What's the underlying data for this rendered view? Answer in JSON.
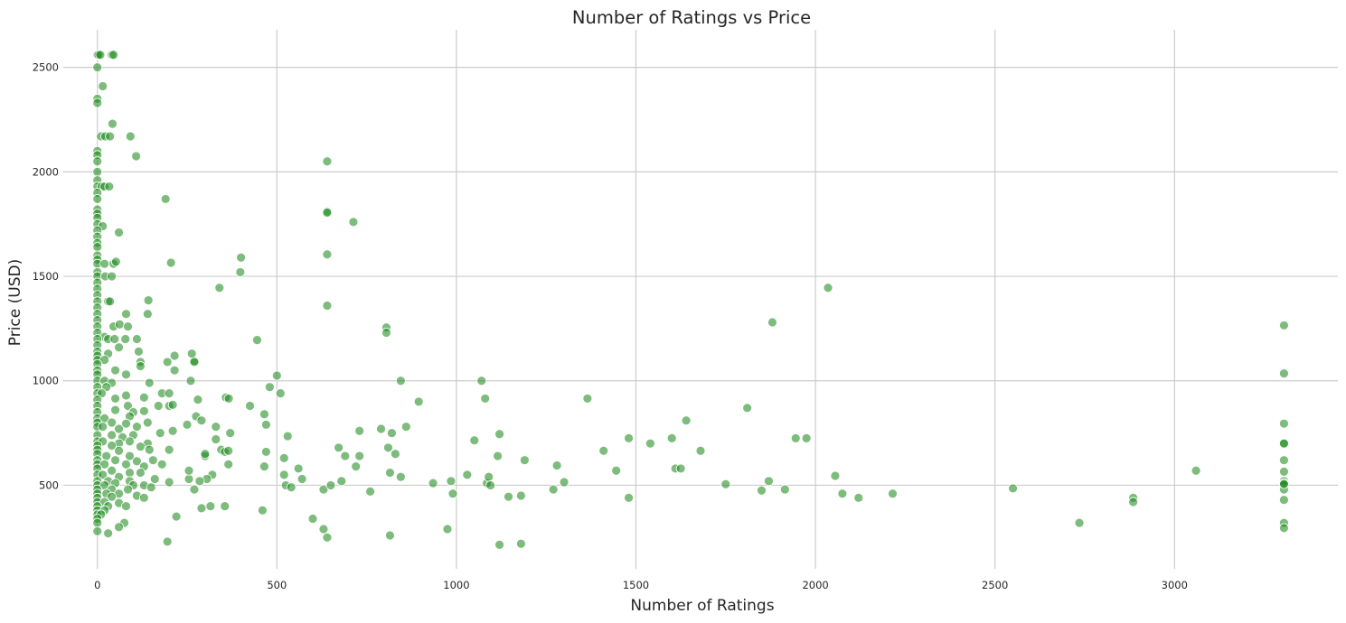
{
  "chart_data": {
    "type": "scatter",
    "title": "Number of Ratings vs Price",
    "xlabel": "Number of Ratings",
    "ylabel": "Price (USD)",
    "xlim": [
      -95,
      3455
    ],
    "ylim": [
      100,
      2680
    ],
    "xticks": [
      0,
      500,
      1000,
      1500,
      2000,
      2500,
      3000
    ],
    "yticks": [
      500,
      1000,
      1500,
      2000,
      2500
    ],
    "grid": true,
    "color": "#1f8b1f",
    "points": [
      [
        0,
        2560
      ],
      [
        3,
        2560
      ],
      [
        8,
        2560
      ],
      [
        40,
        2560
      ],
      [
        45,
        2560
      ],
      [
        0,
        2500
      ],
      [
        15,
        2410
      ],
      [
        0,
        2350
      ],
      [
        0,
        2330
      ],
      [
        42,
        2230
      ],
      [
        10,
        2170
      ],
      [
        22,
        2170
      ],
      [
        35,
        2170
      ],
      [
        92,
        2170
      ],
      [
        0,
        2100
      ],
      [
        108,
        2075
      ],
      [
        0,
        2080
      ],
      [
        0,
        2050
      ],
      [
        0,
        2000
      ],
      [
        0,
        1960
      ],
      [
        0,
        1930
      ],
      [
        12,
        1930
      ],
      [
        20,
        1930
      ],
      [
        33,
        1930
      ],
      [
        0,
        1900
      ],
      [
        0,
        1870
      ],
      [
        190,
        1870
      ],
      [
        0,
        1820
      ],
      [
        0,
        1800
      ],
      [
        0,
        1780
      ],
      [
        0,
        1750
      ],
      [
        15,
        1740
      ],
      [
        0,
        1720
      ],
      [
        60,
        1710
      ],
      [
        0,
        1690
      ],
      [
        0,
        1660
      ],
      [
        0,
        1640
      ],
      [
        0,
        1600
      ],
      [
        0,
        1580
      ],
      [
        0,
        1560
      ],
      [
        20,
        1560
      ],
      [
        45,
        1560
      ],
      [
        52,
        1570
      ],
      [
        205,
        1565
      ],
      [
        400,
        1590
      ],
      [
        398,
        1520
      ],
      [
        0,
        1520
      ],
      [
        0,
        1500
      ],
      [
        22,
        1500
      ],
      [
        40,
        1500
      ],
      [
        0,
        1470
      ],
      [
        0,
        1440
      ],
      [
        0,
        1410
      ],
      [
        0,
        1380
      ],
      [
        30,
        1380
      ],
      [
        35,
        1380
      ],
      [
        142,
        1385
      ],
      [
        0,
        1350
      ],
      [
        0,
        1320
      ],
      [
        80,
        1320
      ],
      [
        140,
        1320
      ],
      [
        0,
        1290
      ],
      [
        0,
        1260
      ],
      [
        45,
        1260
      ],
      [
        62,
        1270
      ],
      [
        85,
        1260
      ],
      [
        0,
        1230
      ],
      [
        20,
        1210
      ],
      [
        0,
        1200
      ],
      [
        30,
        1200
      ],
      [
        48,
        1200
      ],
      [
        78,
        1200
      ],
      [
        110,
        1200
      ],
      [
        0,
        1170
      ],
      [
        60,
        1160
      ],
      [
        0,
        1140
      ],
      [
        115,
        1140
      ],
      [
        0,
        1120
      ],
      [
        30,
        1130
      ],
      [
        215,
        1120
      ],
      [
        0,
        1100
      ],
      [
        20,
        1100
      ],
      [
        120,
        1090
      ],
      [
        195,
        1090
      ],
      [
        270,
        1095
      ],
      [
        0,
        1080
      ],
      [
        120,
        1070
      ],
      [
        0,
        1050
      ],
      [
        50,
        1050
      ],
      [
        215,
        1050
      ],
      [
        0,
        1030
      ],
      [
        80,
        1030
      ],
      [
        0,
        1000
      ],
      [
        20,
        1000
      ],
      [
        40,
        990
      ],
      [
        145,
        990
      ],
      [
        260,
        1000
      ],
      [
        0,
        970
      ],
      [
        25,
        970
      ],
      [
        0,
        940
      ],
      [
        12,
        940
      ],
      [
        80,
        930
      ],
      [
        180,
        940
      ],
      [
        200,
        940
      ],
      [
        0,
        910
      ],
      [
        50,
        915
      ],
      [
        130,
        920
      ],
      [
        0,
        880
      ],
      [
        85,
        880
      ],
      [
        170,
        880
      ],
      [
        200,
        880
      ],
      [
        210,
        885
      ],
      [
        0,
        850
      ],
      [
        50,
        860
      ],
      [
        100,
        850
      ],
      [
        130,
        855
      ],
      [
        0,
        820
      ],
      [
        20,
        820
      ],
      [
        90,
        830
      ],
      [
        0,
        800
      ],
      [
        40,
        800
      ],
      [
        80,
        795
      ],
      [
        140,
        800
      ],
      [
        250,
        790
      ],
      [
        0,
        780
      ],
      [
        15,
        780
      ],
      [
        60,
        770
      ],
      [
        110,
        780
      ],
      [
        175,
        750
      ],
      [
        210,
        760
      ],
      [
        0,
        740
      ],
      [
        40,
        740
      ],
      [
        70,
        730
      ],
      [
        100,
        740
      ],
      [
        0,
        710
      ],
      [
        15,
        710
      ],
      [
        60,
        700
      ],
      [
        90,
        710
      ],
      [
        140,
        700
      ],
      [
        0,
        690
      ],
      [
        40,
        690
      ],
      [
        120,
        685
      ],
      [
        0,
        670
      ],
      [
        60,
        665
      ],
      [
        145,
        670
      ],
      [
        200,
        670
      ],
      [
        0,
        650
      ],
      [
        25,
        640
      ],
      [
        90,
        640
      ],
      [
        0,
        620
      ],
      [
        50,
        620
      ],
      [
        110,
        615
      ],
      [
        155,
        620
      ],
      [
        0,
        600
      ],
      [
        20,
        600
      ],
      [
        80,
        600
      ],
      [
        130,
        590
      ],
      [
        180,
        600
      ],
      [
        0,
        580
      ],
      [
        40,
        570
      ],
      [
        90,
        560
      ],
      [
        120,
        560
      ],
      [
        0,
        550
      ],
      [
        15,
        550
      ],
      [
        60,
        540
      ],
      [
        0,
        520
      ],
      [
        30,
        520
      ],
      [
        90,
        520
      ],
      [
        160,
        530
      ],
      [
        200,
        515
      ],
      [
        0,
        500
      ],
      [
        20,
        500
      ],
      [
        50,
        510
      ],
      [
        100,
        500
      ],
      [
        130,
        500
      ],
      [
        0,
        480
      ],
      [
        40,
        480
      ],
      [
        85,
        480
      ],
      [
        150,
        490
      ],
      [
        0,
        460
      ],
      [
        25,
        460
      ],
      [
        60,
        460
      ],
      [
        110,
        450
      ],
      [
        0,
        440
      ],
      [
        40,
        445
      ],
      [
        130,
        440
      ],
      [
        0,
        420
      ],
      [
        20,
        420
      ],
      [
        60,
        415
      ],
      [
        0,
        400
      ],
      [
        30,
        400
      ],
      [
        80,
        400
      ],
      [
        0,
        380
      ],
      [
        20,
        380
      ],
      [
        0,
        360
      ],
      [
        10,
        360
      ],
      [
        0,
        340
      ],
      [
        0,
        320
      ],
      [
        75,
        320
      ],
      [
        60,
        300
      ],
      [
        0,
        280
      ],
      [
        30,
        270
      ],
      [
        220,
        350
      ],
      [
        195,
        230
      ],
      [
        270,
        1090
      ],
      [
        263,
        1130
      ],
      [
        280,
        910
      ],
      [
        275,
        830
      ],
      [
        290,
        810
      ],
      [
        300,
        640
      ],
      [
        320,
        550
      ],
      [
        330,
        720
      ],
      [
        330,
        780
      ],
      [
        345,
        670
      ],
      [
        355,
        660
      ],
      [
        340,
        1445
      ],
      [
        358,
        920
      ],
      [
        366,
        915
      ],
      [
        370,
        750
      ],
      [
        365,
        665
      ],
      [
        365,
        600
      ],
      [
        355,
        400
      ],
      [
        315,
        400
      ],
      [
        300,
        650
      ],
      [
        305,
        530
      ],
      [
        285,
        520
      ],
      [
        290,
        390
      ],
      [
        270,
        480
      ],
      [
        255,
        530
      ],
      [
        255,
        570
      ],
      [
        425,
        880
      ],
      [
        445,
        1195
      ],
      [
        465,
        840
      ],
      [
        470,
        790
      ],
      [
        470,
        660
      ],
      [
        465,
        590
      ],
      [
        460,
        380
      ],
      [
        480,
        970
      ],
      [
        500,
        1025
      ],
      [
        510,
        940
      ],
      [
        520,
        630
      ],
      [
        520,
        550
      ],
      [
        525,
        500
      ],
      [
        530,
        735
      ],
      [
        540,
        490
      ],
      [
        560,
        580
      ],
      [
        570,
        530
      ],
      [
        600,
        340
      ],
      [
        630,
        480
      ],
      [
        630,
        290
      ],
      [
        640,
        250
      ],
      [
        640,
        2050
      ],
      [
        640,
        1810
      ],
      [
        640,
        1805
      ],
      [
        640,
        1605
      ],
      [
        640,
        1360
      ],
      [
        650,
        500
      ],
      [
        672,
        680
      ],
      [
        680,
        520
      ],
      [
        690,
        640
      ],
      [
        713,
        1760
      ],
      [
        720,
        590
      ],
      [
        730,
        760
      ],
      [
        730,
        640
      ],
      [
        760,
        470
      ],
      [
        790,
        770
      ],
      [
        805,
        1255
      ],
      [
        805,
        1230
      ],
      [
        810,
        680
      ],
      [
        815,
        560
      ],
      [
        820,
        750
      ],
      [
        815,
        260
      ],
      [
        830,
        650
      ],
      [
        845,
        1000
      ],
      [
        845,
        540
      ],
      [
        860,
        780
      ],
      [
        895,
        900
      ],
      [
        935,
        510
      ],
      [
        975,
        290
      ],
      [
        985,
        520
      ],
      [
        990,
        460
      ],
      [
        1030,
        550
      ],
      [
        1050,
        715
      ],
      [
        1070,
        1000
      ],
      [
        1080,
        915
      ],
      [
        1085,
        510
      ],
      [
        1090,
        540
      ],
      [
        1095,
        500
      ],
      [
        1115,
        640
      ],
      [
        1120,
        745
      ],
      [
        1120,
        215
      ],
      [
        1145,
        445
      ],
      [
        1180,
        450
      ],
      [
        1180,
        220
      ],
      [
        1190,
        620
      ],
      [
        1270,
        480
      ],
      [
        1280,
        595
      ],
      [
        1300,
        515
      ],
      [
        1365,
        915
      ],
      [
        1410,
        665
      ],
      [
        1445,
        570
      ],
      [
        1480,
        725
      ],
      [
        1480,
        440
      ],
      [
        1540,
        700
      ],
      [
        1600,
        725
      ],
      [
        1610,
        580
      ],
      [
        1625,
        580
      ],
      [
        1640,
        810
      ],
      [
        1680,
        665
      ],
      [
        1750,
        505
      ],
      [
        1810,
        870
      ],
      [
        1850,
        475
      ],
      [
        1870,
        520
      ],
      [
        1880,
        1280
      ],
      [
        1915,
        480
      ],
      [
        1945,
        725
      ],
      [
        1975,
        725
      ],
      [
        2035,
        1445
      ],
      [
        2055,
        545
      ],
      [
        2075,
        460
      ],
      [
        2120,
        440
      ],
      [
        2215,
        460
      ],
      [
        2550,
        485
      ],
      [
        2735,
        320
      ],
      [
        2885,
        440
      ],
      [
        2885,
        420
      ],
      [
        3060,
        570
      ],
      [
        3305,
        1265
      ],
      [
        3305,
        1035
      ],
      [
        3305,
        795
      ],
      [
        3305,
        700
      ],
      [
        3305,
        700
      ],
      [
        3305,
        620
      ],
      [
        3305,
        565
      ],
      [
        3305,
        520
      ],
      [
        3305,
        500
      ],
      [
        3305,
        480
      ],
      [
        3305,
        430
      ],
      [
        3305,
        320
      ],
      [
        3305,
        295
      ],
      [
        3305,
        510
      ],
      [
        3305,
        505
      ]
    ]
  }
}
